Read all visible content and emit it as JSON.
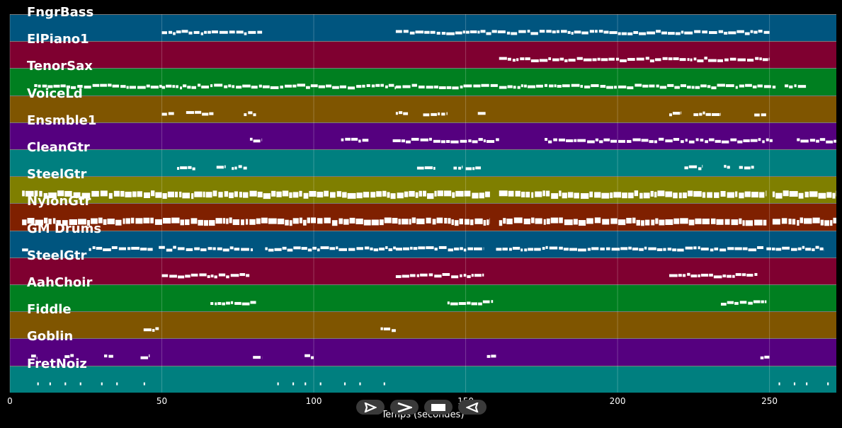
{
  "window": {
    "background": "#000000"
  },
  "tracks": [
    {
      "name": "FngrBass",
      "color": "#00557f"
    },
    {
      "name": "ElPiano1",
      "color": "#7f0030"
    },
    {
      "name": "TenorSax",
      "color": "#007f20"
    },
    {
      "name": "VoiceLd",
      "color": "#7f5500"
    },
    {
      "name": "Ensmble1",
      "color": "#55007f"
    },
    {
      "name": "CleanGtr",
      "color": "#007f7f"
    },
    {
      "name": "SteelGtr",
      "color": "#7f7f00"
    },
    {
      "name": "NylonGtr",
      "color": "#7f2000"
    },
    {
      "name": "GM Drums",
      "color": "#00557f"
    },
    {
      "name": "SteelGtr",
      "color": "#7f0030"
    },
    {
      "name": "AahChoir",
      "color": "#007f20"
    },
    {
      "name": "Fiddle",
      "color": "#7f5500"
    },
    {
      "name": "Goblin",
      "color": "#55007f"
    },
    {
      "name": "FretNoiz",
      "color": "#007f7f"
    }
  ],
  "axis": {
    "xlabel": "Temps (secondes)",
    "ticks": [
      "0",
      "50",
      "100",
      "150",
      "200",
      "250"
    ],
    "xlim": [
      0,
      272
    ],
    "grid": true
  },
  "note_color": "#ffffff",
  "controls": [
    {
      "name": "play-icon",
      "label": "play"
    },
    {
      "name": "forward-icon",
      "label": "forward"
    },
    {
      "name": "stop-icon",
      "label": "stop"
    },
    {
      "name": "rewind-icon",
      "label": "rewind"
    }
  ],
  "chart_data": {
    "type": "scatter",
    "xlabel": "Temps (secondes)",
    "xlim": [
      0,
      272
    ],
    "x_ticks": [
      0,
      50,
      100,
      150,
      200,
      250
    ],
    "series": [
      {
        "name": "FngrBass",
        "segments": [
          [
            50,
            83
          ],
          [
            127,
            250
          ]
        ]
      },
      {
        "name": "ElPiano1",
        "segments": [
          [
            161,
            250
          ]
        ]
      },
      {
        "name": "TenorSax",
        "segments": [
          [
            8,
            50
          ],
          [
            50,
            127
          ],
          [
            127,
            252
          ],
          [
            255,
            262
          ]
        ]
      },
      {
        "name": "VoiceLd",
        "segments": [
          [
            50,
            54
          ],
          [
            58,
            67
          ],
          [
            77,
            81
          ],
          [
            127,
            131
          ],
          [
            136,
            144
          ],
          [
            154,
            157
          ],
          [
            217,
            221
          ],
          [
            225,
            234
          ],
          [
            245,
            249
          ]
        ]
      },
      {
        "name": "Ensmble1",
        "segments": [
          [
            79,
            83
          ],
          [
            109,
            118
          ],
          [
            126,
            161
          ],
          [
            176,
            251
          ],
          [
            259,
            272
          ]
        ]
      },
      {
        "name": "CleanGtr",
        "segments": [
          [
            55,
            61
          ],
          [
            68,
            71
          ],
          [
            73,
            78
          ],
          [
            134,
            140
          ],
          [
            146,
            149
          ],
          [
            150,
            155
          ],
          [
            222,
            228
          ],
          [
            235,
            237
          ],
          [
            240,
            245
          ]
        ]
      },
      {
        "name": "SteelGtr",
        "segments": [
          [
            4,
            158
          ],
          [
            161,
            249
          ],
          [
            251,
            272
          ]
        ]
      },
      {
        "name": "NylonGtr",
        "segments": [
          [
            4,
            158
          ],
          [
            161,
            249
          ],
          [
            251,
            272
          ]
        ]
      },
      {
        "name": "GM Drums",
        "segments": [
          [
            4,
            6
          ],
          [
            26,
            47
          ],
          [
            49,
            80
          ],
          [
            84,
            127
          ],
          [
            127,
            156
          ],
          [
            160,
            248
          ],
          [
            249,
            268
          ]
        ]
      },
      {
        "name": "SteelGtr",
        "segments": [
          [
            50,
            79
          ],
          [
            127,
            156
          ],
          [
            217,
            246
          ]
        ]
      },
      {
        "name": "AahChoir",
        "segments": [
          [
            66,
            81
          ],
          [
            144,
            159
          ],
          [
            234,
            249
          ]
        ]
      },
      {
        "name": "Fiddle",
        "segments": [
          [
            44,
            49
          ],
          [
            122,
            127
          ]
        ]
      },
      {
        "name": "Goblin",
        "segments": [
          [
            7,
            9
          ],
          [
            18,
            21
          ],
          [
            31,
            34
          ],
          [
            43,
            46
          ],
          [
            80,
            83
          ],
          [
            97,
            100
          ],
          [
            157,
            160
          ],
          [
            247,
            250
          ]
        ]
      },
      {
        "name": "FretNoiz",
        "segments": [
          [
            9,
            9.5
          ],
          [
            13,
            13.5
          ],
          [
            18,
            18.5
          ],
          [
            23,
            23.5
          ],
          [
            30,
            30.5
          ],
          [
            35,
            35.5
          ],
          [
            44,
            44.5
          ],
          [
            88,
            88.5
          ],
          [
            93,
            93.5
          ],
          [
            97,
            97.5
          ],
          [
            102,
            102.5
          ],
          [
            110,
            110.5
          ],
          [
            115,
            115.5
          ],
          [
            123,
            123.5
          ],
          [
            253,
            253.5
          ],
          [
            258,
            258.5
          ],
          [
            262,
            262.5
          ],
          [
            269,
            269.5
          ]
        ]
      }
    ]
  }
}
